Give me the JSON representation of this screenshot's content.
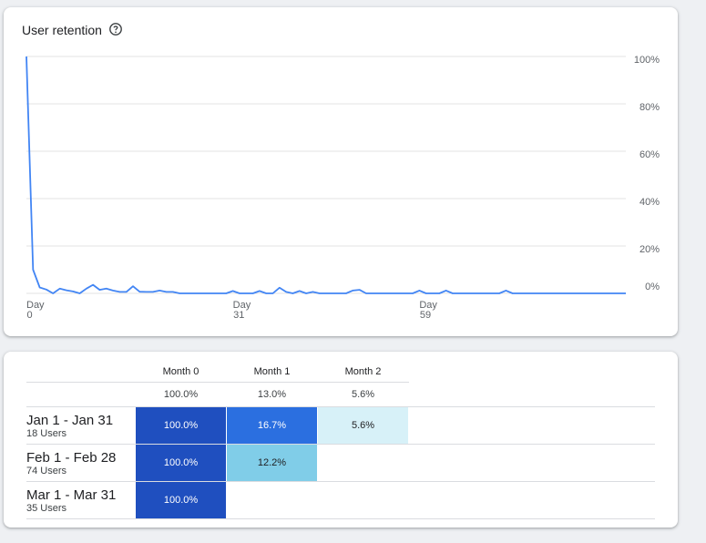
{
  "retention_card": {
    "title": "User retention",
    "icon": "help-circle-icon"
  },
  "chart_data": {
    "type": "line",
    "ylabel": "",
    "xlabel": "",
    "y_tick_labels": [
      "100%",
      "80%",
      "60%",
      "40%",
      "20%",
      "0%"
    ],
    "y_ticks": [
      100,
      80,
      60,
      40,
      20,
      0
    ],
    "ylim": [
      0,
      100
    ],
    "x_ticks": [
      {
        "day": 0,
        "line1": "Day",
        "line2": "0"
      },
      {
        "day": 31,
        "line1": "Day",
        "line2": "31"
      },
      {
        "day": 59,
        "line1": "Day",
        "line2": "59"
      }
    ],
    "xlim": [
      0,
      90
    ],
    "grid": true,
    "series": [
      {
        "color": "#4285f4",
        "x": [
          0,
          1,
          2,
          3,
          4,
          5,
          6,
          7,
          8,
          9,
          10,
          11,
          12,
          13,
          14,
          15,
          16,
          17,
          18,
          19,
          20,
          21,
          22,
          23,
          24,
          25,
          26,
          27,
          28,
          29,
          30,
          31,
          32,
          33,
          34,
          35,
          36,
          37,
          38,
          39,
          40,
          41,
          42,
          43,
          44,
          45,
          46,
          47,
          48,
          49,
          50,
          51,
          52,
          53,
          54,
          55,
          56,
          57,
          58,
          59,
          60,
          61,
          62,
          63,
          64,
          65,
          66,
          67,
          68,
          69,
          70,
          71,
          72,
          73,
          74,
          75,
          76,
          77,
          78,
          79,
          80,
          81,
          82,
          83,
          84,
          85,
          86,
          87,
          88,
          89,
          90
        ],
        "y": [
          100,
          10,
          2.5,
          1.6,
          0,
          2,
          1.3,
          0.8,
          0,
          2,
          3.6,
          1.5,
          2,
          1.2,
          0.6,
          0.6,
          3,
          0.7,
          0.6,
          0.6,
          1.2,
          0.6,
          0.6,
          0,
          0,
          0,
          0,
          0,
          0,
          0,
          0,
          1,
          0,
          0,
          0,
          1,
          0,
          0,
          2.4,
          0.6,
          0,
          1,
          0,
          0.6,
          0,
          0,
          0,
          0,
          0,
          1.2,
          1.5,
          0,
          0,
          0,
          0,
          0,
          0,
          0,
          0,
          1.2,
          0,
          0,
          0,
          1.2,
          0,
          0,
          0,
          0,
          0,
          0,
          0,
          0,
          1.2,
          0,
          0,
          0,
          0,
          0,
          0,
          0,
          0,
          0,
          0,
          0,
          0,
          0,
          0,
          0,
          0,
          0,
          0
        ]
      }
    ]
  },
  "cohort_table": {
    "columns": [
      "Month 0",
      "Month 1",
      "Month 2"
    ],
    "totals": [
      "100.0%",
      "13.0%",
      "5.6%"
    ],
    "rows": [
      {
        "label": "Jan 1 - Jan 31",
        "users": "18 Users",
        "cells": [
          "100.0%",
          "16.7%",
          "5.6%"
        ]
      },
      {
        "label": "Feb 1 - Feb 28",
        "users": "74 Users",
        "cells": [
          "100.0%",
          "12.2%"
        ]
      },
      {
        "label": "Mar 1 - Mar 31",
        "users": "35 Users",
        "cells": [
          "100.0%"
        ]
      }
    ],
    "colors": {
      "100.0%": "#1f4fbf",
      "16.7%": "#2b6fe0",
      "12.2%": "#80cde8",
      "5.6%": "#d7f1f8"
    }
  }
}
